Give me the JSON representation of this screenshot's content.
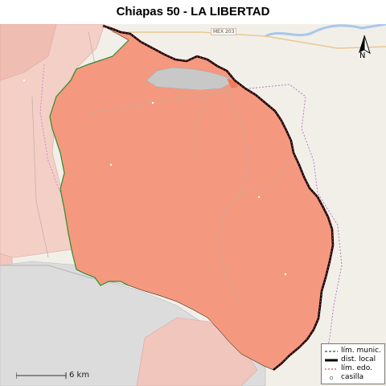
{
  "title": "Chiapas 50 - LA LIBERTAD",
  "road_label": "MEX 203",
  "north_label": "N",
  "scale": {
    "label": "6 km"
  },
  "legend": {
    "items": [
      {
        "label": "lím. munic.",
        "style": "dashed-green",
        "color": "#2e8b2e"
      },
      {
        "label": "dist. local",
        "style": "thick-black",
        "color": "#000000"
      },
      {
        "label": "lím. edo.",
        "style": "dashed-red",
        "color": "#b03030"
      },
      {
        "label": "casilla",
        "style": "dot",
        "color": "#ffffff"
      }
    ]
  },
  "colors": {
    "district_fill": "#f4997f",
    "neighbor_fill": "#f2c2b8",
    "urban_fill": "#c8c8c8",
    "background": "#f2efe9",
    "river": "#a8c8e8"
  }
}
